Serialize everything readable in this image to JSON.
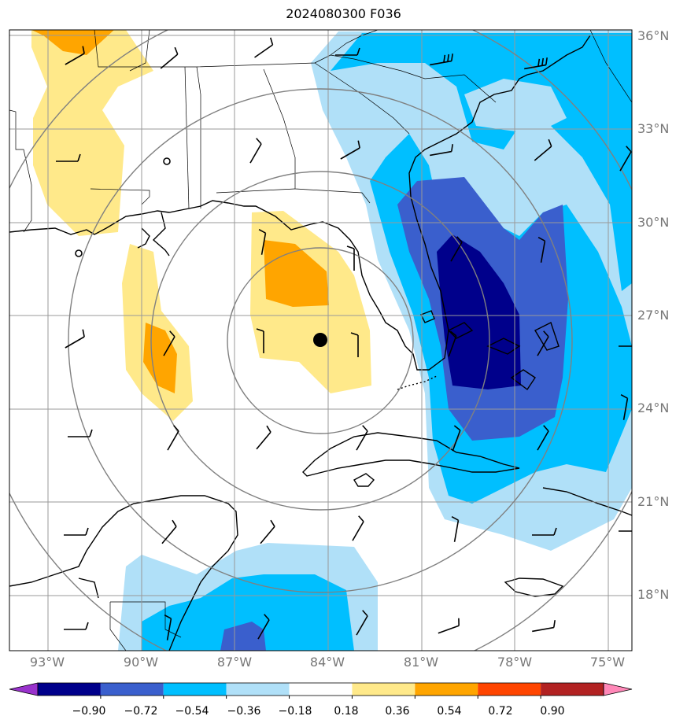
{
  "title": "2024080300 F036",
  "lat_labels": [
    "36°N",
    "33°N",
    "30°N",
    "27°N",
    "24°N",
    "21°N",
    "18°N"
  ],
  "lon_labels": [
    "93°W",
    "90°W",
    "87°W",
    "84°W",
    "81°W",
    "78°W",
    "75°W"
  ],
  "colorbar": {
    "labels": [
      "−0.90",
      "−0.72",
      "−0.54",
      "−0.36",
      "−0.18",
      "0.18",
      "0.36",
      "0.54",
      "0.72",
      "0.90"
    ],
    "colors": [
      "#9932cc",
      "#00008b",
      "#3a5fcd",
      "#00bfff",
      "#b0e0f8",
      "#ffffff",
      "#ffe98a",
      "#ffa500",
      "#ff4500",
      "#b22222",
      "#ff88b8"
    ]
  },
  "map_colors": {
    "ocean_land_bg": "#ffffff",
    "dark_blue": "#00008b",
    "med_blue": "#3a5fcd",
    "sky_blue": "#00bfff",
    "light_blue": "#b0e0f8",
    "light_yellow": "#ffe98a",
    "orange": "#ffa500",
    "grid": "#999999",
    "range_ring": "#808080",
    "coast": "#000000"
  },
  "center_marker": "storm-center-dot"
}
